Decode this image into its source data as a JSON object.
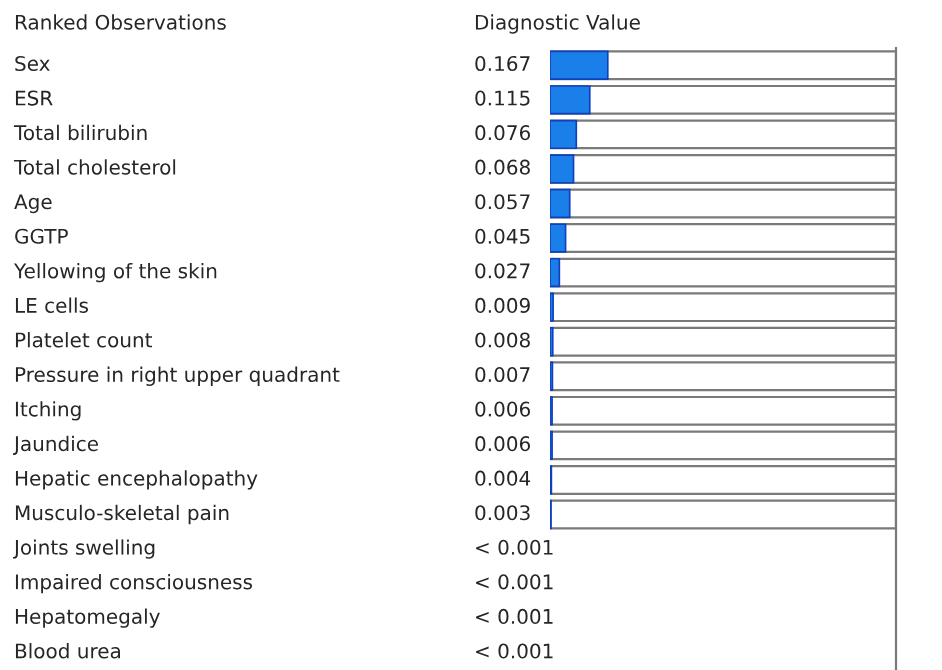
{
  "chart_data": {
    "type": "bar",
    "orientation": "horizontal",
    "ylabel": "Ranked Observations",
    "xlabel": "Diagnostic Value",
    "categories": [
      "Sex",
      "ESR",
      "Total bilirubin",
      "Total cholesterol",
      "Age",
      "GGTP",
      "Yellowing of the skin",
      "LE cells",
      "Platelet count",
      "Pressure in right upper quadrant",
      "Itching",
      "Jaundice",
      "Hepatic encephalopathy",
      "Musculo-skeletal pain",
      "Joints swelling",
      "Impaired consciousness",
      "Hepatomegaly",
      "Blood urea"
    ],
    "values": [
      0.167,
      0.115,
      0.076,
      0.068,
      0.057,
      0.045,
      0.027,
      0.009,
      0.008,
      0.007,
      0.006,
      0.006,
      0.004,
      0.003,
      null,
      null,
      null,
      null
    ],
    "value_labels": [
      "0.167",
      "0.115",
      "0.076",
      "0.068",
      "0.057",
      "0.045",
      "0.027",
      "0.009",
      "0.008",
      "0.007",
      "0.006",
      "0.006",
      "0.004",
      "0.003",
      "< 0.001",
      "< 0.001",
      "< 0.001",
      "< 0.001"
    ],
    "color": "#1a7fe8",
    "xlim": [
      0,
      1
    ],
    "tick_labels": false,
    "legend": false
  }
}
